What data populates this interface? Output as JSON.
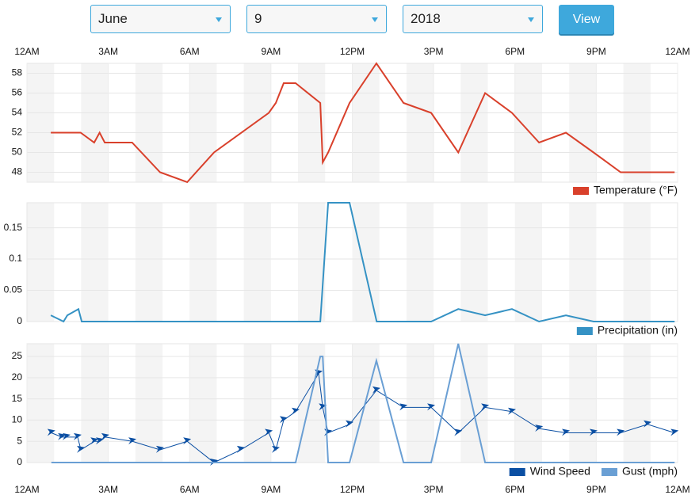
{
  "controls": {
    "month": "June",
    "day": "9",
    "year": "2018",
    "button": "View"
  },
  "chart_data": [
    {
      "type": "line",
      "xlim": [
        0,
        24
      ],
      "xticks": [
        {
          "value": 0,
          "label": "12AM"
        },
        {
          "value": 3,
          "label": "3AM"
        },
        {
          "value": 6,
          "label": "6AM"
        },
        {
          "value": 9,
          "label": "9AM"
        },
        {
          "value": 12,
          "label": "12PM"
        },
        {
          "value": 15,
          "label": "3PM"
        },
        {
          "value": 18,
          "label": "6PM"
        },
        {
          "value": 21,
          "label": "9PM"
        },
        {
          "value": 24,
          "label": "12AM"
        }
      ],
      "ylim": [
        47,
        59
      ],
      "yticks": [
        48,
        50,
        52,
        54,
        56,
        58
      ],
      "grid": true,
      "series": [
        {
          "name": "Temperature (°F)",
          "color": "#d9402b",
          "x": [
            0.88,
            1.98,
            2.48,
            2.68,
            2.87,
            3.88,
            4.91,
            5.91,
            6.9,
            8.92,
            9.18,
            9.47,
            9.91,
            10.82,
            10.91,
            11.11,
            11.9,
            12.89,
            13.89,
            14.91,
            15.91,
            16.9,
            17.89,
            18.89,
            19.88,
            20.9,
            21.9,
            22.9,
            23.89
          ],
          "values": [
            52,
            52,
            51,
            52,
            51,
            51,
            48,
            47,
            50,
            54,
            55,
            57,
            57,
            55,
            49,
            50,
            55,
            59,
            55,
            54,
            50,
            56,
            54,
            51,
            52,
            50,
            48,
            48,
            48
          ]
        }
      ]
    },
    {
      "type": "line",
      "xlim": [
        0,
        24
      ],
      "ylim": [
        0,
        0.19
      ],
      "yticks": [
        0,
        0.05,
        0.1,
        0.15
      ],
      "grid": true,
      "series": [
        {
          "name": "Precipitation (in)",
          "color": "#3592c4",
          "x": [
            0.88,
            1.35,
            1.49,
            1.9,
            2.02,
            10.82,
            11.11,
            11.9,
            12.9,
            14.91,
            15.91,
            16.9,
            17.89,
            18.89,
            19.88,
            20.9,
            23.89
          ],
          "values": [
            0.01,
            0,
            0.01,
            0.02,
            0,
            0,
            0.19,
            0.19,
            0,
            0,
            0.02,
            0.01,
            0.02,
            0,
            0.01,
            0,
            0
          ]
        }
      ]
    },
    {
      "type": "line",
      "xlim": [
        0,
        24
      ],
      "xticks": [
        {
          "value": 0,
          "label": "12AM"
        },
        {
          "value": 3,
          "label": "3AM"
        },
        {
          "value": 6,
          "label": "6AM"
        },
        {
          "value": 9,
          "label": "9AM"
        },
        {
          "value": 12,
          "label": "12PM"
        },
        {
          "value": 15,
          "label": "3PM"
        },
        {
          "value": 18,
          "label": "6PM"
        },
        {
          "value": 21,
          "label": "9PM"
        },
        {
          "value": 24,
          "label": "12AM"
        }
      ],
      "ylim": [
        0,
        28
      ],
      "yticks": [
        0,
        5,
        10,
        15,
        20,
        25
      ],
      "grid": true,
      "series": [
        {
          "name": "Wind Speed",
          "color": "#0b4fa3",
          "markers": true,
          "x": [
            0.9,
            1.29,
            1.46,
            1.87,
            1.99,
            2.49,
            2.69,
            2.89,
            3.89,
            4.91,
            5.91,
            6.9,
            7.89,
            8.92,
            9.18,
            9.47,
            9.91,
            10.76,
            10.91,
            11.11,
            11.9,
            12.89,
            13.89,
            14.91,
            15.91,
            16.9,
            17.89,
            18.89,
            19.88,
            20.9,
            21.9,
            22.89,
            23.89
          ],
          "values": [
            7,
            6,
            6,
            6,
            3,
            5,
            5,
            6,
            5,
            3,
            5,
            0,
            3,
            7,
            3,
            10,
            12,
            21,
            13,
            7,
            9,
            17,
            13,
            13,
            7,
            13,
            12,
            8,
            7,
            7,
            7,
            9,
            7
          ]
        },
        {
          "name": "Gust (mph)",
          "color": "#6a9fd4",
          "x": [
            0.9,
            9.91,
            10.82,
            10.91,
            11.11,
            11.9,
            12.89,
            13.89,
            14.91,
            15.91,
            16.9,
            23.89
          ],
          "values": [
            0,
            0,
            25,
            25,
            0,
            0,
            24,
            0,
            0,
            28,
            0,
            0
          ]
        }
      ]
    }
  ]
}
